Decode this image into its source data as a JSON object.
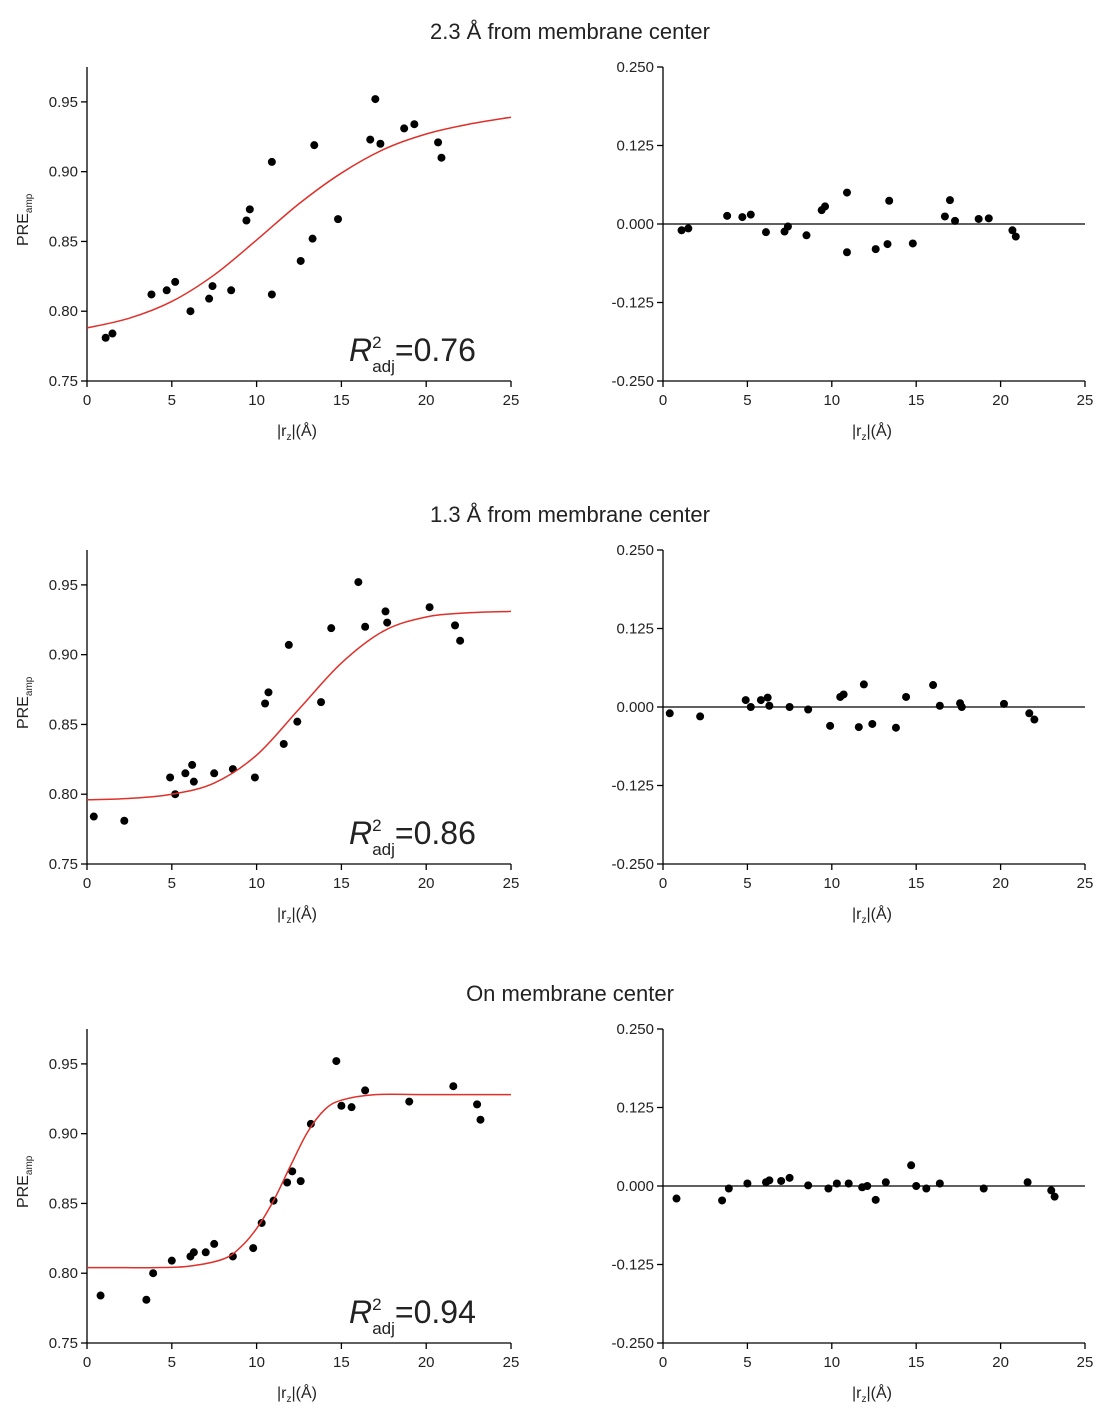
{
  "chart_data": [
    {
      "type": "scatter",
      "title": "2.3 Å from membrane center",
      "xlabel": {
        "text": "|r",
        "sub": "z",
        "after": "|(Å)"
      },
      "ylabel": {
        "text": "PRE",
        "sub": "amp"
      },
      "annotation": {
        "text": "R",
        "sup": "2",
        "sub": "adj",
        "after": "=0.76"
      },
      "xlim": [
        0,
        25
      ],
      "xticks": [
        0,
        5,
        10,
        15,
        20,
        25
      ],
      "ylim": [
        0.75,
        0.975
      ],
      "yticks": [
        0.75,
        {
          "value": 0.8,
          "label": "0.80"
        },
        0.85,
        {
          "value": 0.9,
          "label": "0.90"
        },
        0.95
      ],
      "series": [
        {
          "type": "scatter",
          "color": "#000000",
          "x": [
            1.1,
            1.5,
            3.8,
            4.7,
            5.2,
            6.1,
            7.2,
            7.4,
            8.5,
            9.4,
            9.6,
            10.9,
            10.9,
            12.6,
            13.3,
            13.4,
            14.8,
            16.7,
            17.0,
            17.3,
            18.7,
            19.3,
            20.7,
            20.9
          ],
          "values": [
            0.781,
            0.784,
            0.812,
            0.815,
            0.821,
            0.8,
            0.809,
            0.818,
            0.815,
            0.865,
            0.873,
            0.907,
            0.812,
            0.836,
            0.852,
            0.919,
            0.866,
            0.923,
            0.952,
            0.92,
            0.931,
            0.934,
            0.921,
            0.91
          ]
        },
        {
          "type": "line",
          "color": "#e0302a",
          "x": [
            0,
            2.5,
            5,
            7.5,
            10,
            12.5,
            15,
            17.5,
            20,
            22.5,
            25
          ],
          "values": [
            0.788,
            0.795,
            0.807,
            0.826,
            0.851,
            0.877,
            0.899,
            0.916,
            0.927,
            0.934,
            0.939
          ]
        }
      ]
    },
    {
      "type": "scatter",
      "xlabel": {
        "text": "|r",
        "sub": "z",
        "after": "|(Å)"
      },
      "xlim": [
        0,
        25
      ],
      "xticks": [
        0,
        5,
        10,
        15,
        20,
        25
      ],
      "ylim": [
        -0.25,
        0.25
      ],
      "baseline": true,
      "yticks": [
        {
          "value": -0.25,
          "label": "-0.250"
        },
        {
          "value": -0.125,
          "label": "-0.125"
        },
        {
          "value": 0,
          "label": "0.000"
        },
        {
          "value": 0.125,
          "label": "0.125"
        },
        {
          "value": 0.25,
          "label": "0.250"
        }
      ],
      "series": [
        {
          "type": "scatter",
          "color": "#000000",
          "x": [
            1.1,
            1.5,
            3.8,
            4.7,
            5.2,
            6.1,
            7.2,
            7.4,
            8.5,
            9.4,
            9.6,
            10.9,
            10.9,
            12.6,
            13.3,
            13.4,
            14.8,
            16.7,
            17.0,
            17.3,
            18.7,
            19.3,
            20.7,
            20.9
          ],
          "values": [
            -0.01,
            -0.007,
            0.013,
            0.011,
            0.015,
            -0.013,
            -0.012,
            -0.004,
            -0.018,
            0.022,
            0.028,
            0.05,
            -0.045,
            -0.04,
            -0.032,
            0.037,
            -0.031,
            0.012,
            0.038,
            0.005,
            0.008,
            0.009,
            -0.01,
            -0.02
          ]
        }
      ]
    },
    {
      "type": "scatter",
      "title": "1.3 Å from membrane center",
      "xlabel": {
        "text": "|r",
        "sub": "z",
        "after": "|(Å)"
      },
      "ylabel": {
        "text": "PRE",
        "sub": "amp"
      },
      "annotation": {
        "text": "R",
        "sup": "2",
        "sub": "adj",
        "after": "=0.86"
      },
      "xlim": [
        0,
        25
      ],
      "xticks": [
        0,
        5,
        10,
        15,
        20,
        25
      ],
      "ylim": [
        0.75,
        0.975
      ],
      "yticks": [
        0.75,
        {
          "value": 0.8,
          "label": "0.80"
        },
        0.85,
        {
          "value": 0.9,
          "label": "0.90"
        },
        0.95
      ],
      "series": [
        {
          "type": "scatter",
          "color": "#000000",
          "x": [
            0.4,
            2.2,
            4.9,
            5.2,
            5.8,
            6.2,
            6.3,
            7.5,
            8.6,
            9.9,
            10.5,
            10.7,
            11.6,
            11.9,
            12.4,
            13.8,
            14.4,
            16.0,
            16.4,
            17.6,
            17.7,
            20.2,
            21.7,
            22.0
          ],
          "values": [
            0.784,
            0.781,
            0.812,
            0.8,
            0.815,
            0.821,
            0.809,
            0.815,
            0.818,
            0.812,
            0.865,
            0.873,
            0.836,
            0.907,
            0.852,
            0.866,
            0.919,
            0.952,
            0.92,
            0.931,
            0.923,
            0.934,
            0.921,
            0.91
          ]
        },
        {
          "type": "line",
          "color": "#e0302a",
          "x": [
            0,
            2.5,
            5,
            7.5,
            10,
            12.5,
            15,
            17.5,
            20,
            22.5,
            25
          ],
          "values": [
            0.796,
            0.797,
            0.8,
            0.808,
            0.828,
            0.861,
            0.894,
            0.917,
            0.927,
            0.93,
            0.931
          ]
        }
      ]
    },
    {
      "type": "scatter",
      "xlabel": {
        "text": "|r",
        "sub": "z",
        "after": "|(Å)"
      },
      "xlim": [
        0,
        25
      ],
      "xticks": [
        0,
        5,
        10,
        15,
        20,
        25
      ],
      "ylim": [
        -0.25,
        0.25
      ],
      "baseline": true,
      "yticks": [
        {
          "value": -0.25,
          "label": "-0.250"
        },
        {
          "value": -0.125,
          "label": "-0.125"
        },
        {
          "value": 0,
          "label": "0.000"
        },
        {
          "value": 0.125,
          "label": "0.125"
        },
        {
          "value": 0.25,
          "label": "0.250"
        }
      ],
      "series": [
        {
          "type": "scatter",
          "color": "#000000",
          "x": [
            0.4,
            2.2,
            4.9,
            5.2,
            5.8,
            6.2,
            6.3,
            7.5,
            8.6,
            9.9,
            10.5,
            10.7,
            11.6,
            11.9,
            12.4,
            13.8,
            14.4,
            16.0,
            16.4,
            17.6,
            17.7,
            20.2,
            21.7,
            22.0
          ],
          "values": [
            -0.01,
            -0.015,
            0.011,
            0.0,
            0.011,
            0.015,
            0.002,
            0.0,
            -0.004,
            -0.03,
            0.016,
            0.02,
            -0.032,
            0.036,
            -0.027,
            -0.033,
            0.016,
            0.035,
            0.002,
            0.006,
            0.0,
            0.005,
            -0.01,
            -0.02
          ]
        }
      ]
    },
    {
      "type": "scatter",
      "title": "On membrane center",
      "xlabel": {
        "text": "|r",
        "sub": "z",
        "after": "|(Å)"
      },
      "ylabel": {
        "text": "PRE",
        "sub": "amp"
      },
      "annotation": {
        "text": "R",
        "sup": "2",
        "sub": "adj",
        "after": "=0.94"
      },
      "xlim": [
        0,
        25
      ],
      "xticks": [
        0,
        5,
        10,
        15,
        20,
        25
      ],
      "ylim": [
        0.75,
        0.975
      ],
      "yticks": [
        0.75,
        {
          "value": 0.8,
          "label": "0.80"
        },
        0.85,
        {
          "value": 0.9,
          "label": "0.90"
        },
        0.95
      ],
      "series": [
        {
          "type": "scatter",
          "color": "#000000",
          "x": [
            0.8,
            3.5,
            3.9,
            5.0,
            6.1,
            6.3,
            7.0,
            7.5,
            8.6,
            9.8,
            10.3,
            11.0,
            11.8,
            12.1,
            12.6,
            13.2,
            14.7,
            15.0,
            15.6,
            16.4,
            19.0,
            21.6,
            23.0,
            23.2
          ],
          "values": [
            0.784,
            0.781,
            0.8,
            0.809,
            0.812,
            0.815,
            0.815,
            0.821,
            0.812,
            0.818,
            0.836,
            0.852,
            0.865,
            0.873,
            0.866,
            0.907,
            0.952,
            0.92,
            0.919,
            0.931,
            0.923,
            0.934,
            0.921,
            0.91
          ]
        },
        {
          "type": "line",
          "color": "#e0302a",
          "x": [
            0,
            2,
            4,
            6,
            8,
            9,
            10,
            11,
            12,
            13,
            14,
            15,
            17,
            20,
            25
          ],
          "values": [
            0.804,
            0.804,
            0.804,
            0.805,
            0.81,
            0.818,
            0.832,
            0.852,
            0.877,
            0.901,
            0.917,
            0.924,
            0.928,
            0.928,
            0.928
          ]
        }
      ]
    },
    {
      "type": "scatter",
      "xlabel": {
        "text": "|r",
        "sub": "z",
        "after": "|(Å)"
      },
      "xlim": [
        0,
        25
      ],
      "xticks": [
        0,
        5,
        10,
        15,
        20,
        25
      ],
      "ylim": [
        -0.25,
        0.25
      ],
      "baseline": true,
      "yticks": [
        {
          "value": -0.25,
          "label": "-0.250"
        },
        {
          "value": -0.125,
          "label": "-0.125"
        },
        {
          "value": 0,
          "label": "0.000"
        },
        {
          "value": 0.125,
          "label": "0.125"
        },
        {
          "value": 0.25,
          "label": "0.250"
        }
      ],
      "series": [
        {
          "type": "scatter",
          "color": "#000000",
          "x": [
            0.8,
            3.5,
            3.9,
            5.0,
            6.1,
            6.3,
            7.0,
            7.5,
            8.6,
            9.8,
            10.3,
            11.0,
            11.8,
            12.1,
            12.6,
            13.2,
            14.7,
            15.0,
            15.6,
            16.4,
            19.0,
            21.6,
            23.0,
            23.2
          ],
          "values": [
            -0.02,
            -0.023,
            -0.004,
            0.004,
            0.006,
            0.009,
            0.008,
            0.013,
            0.001,
            -0.004,
            0.004,
            0.004,
            -0.002,
            0.0,
            -0.022,
            0.006,
            0.033,
            0.0,
            -0.004,
            0.004,
            -0.004,
            0.006,
            -0.007,
            -0.017
          ]
        }
      ]
    }
  ]
}
